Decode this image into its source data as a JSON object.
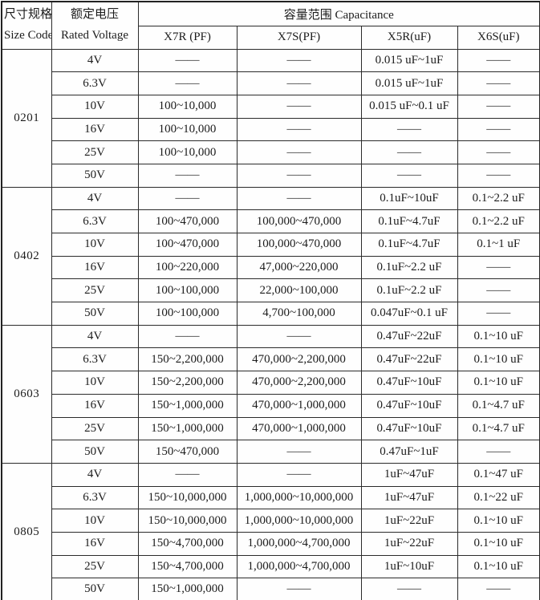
{
  "header": {
    "size_code_zh": "尺寸规格",
    "size_code_en": "Size Code",
    "rated_voltage_zh": "额定电压",
    "rated_voltage_en": "Rated Voltage",
    "capacitance_title": "容量范围 Capacitance",
    "sub_columns": [
      "X7R (PF)",
      "X7S(PF)",
      "X5R(uF)",
      "X6S(uF)"
    ]
  },
  "dash_symbol": "——",
  "groups": [
    {
      "size_code": "0201",
      "rows": [
        {
          "voltage": "4V",
          "x7r": "——",
          "x7s": "——",
          "x5r": "0.015 uF~1uF",
          "x6s": "——"
        },
        {
          "voltage": "6.3V",
          "x7r": "——",
          "x7s": "——",
          "x5r": "0.015 uF~1uF",
          "x6s": "——"
        },
        {
          "voltage": "10V",
          "x7r": "100~10,000",
          "x7s": "——",
          "x5r": "0.015 uF~0.1 uF",
          "x6s": "——"
        },
        {
          "voltage": "16V",
          "x7r": "100~10,000",
          "x7s": "——",
          "x5r": "——",
          "x6s": "——"
        },
        {
          "voltage": "25V",
          "x7r": "100~10,000",
          "x7s": "——",
          "x5r": "——",
          "x6s": "——"
        },
        {
          "voltage": "50V",
          "x7r": "——",
          "x7s": "——",
          "x5r": "——",
          "x6s": "——"
        }
      ]
    },
    {
      "size_code": "0402",
      "rows": [
        {
          "voltage": "4V",
          "x7r": "——",
          "x7s": "——",
          "x5r": "0.1uF~10uF",
          "x6s": "0.1~2.2 uF"
        },
        {
          "voltage": "6.3V",
          "x7r": "100~470,000",
          "x7s": "100,000~470,000",
          "x5r": "0.1uF~4.7uF",
          "x6s": "0.1~2.2 uF"
        },
        {
          "voltage": "10V",
          "x7r": "100~470,000",
          "x7s": "100,000~470,000",
          "x5r": "0.1uF~4.7uF",
          "x6s": "0.1~1 uF"
        },
        {
          "voltage": "16V",
          "x7r": "100~220,000",
          "x7s": "47,000~220,000",
          "x5r": "0.1uF~2.2 uF",
          "x6s": "——"
        },
        {
          "voltage": "25V",
          "x7r": "100~100,000",
          "x7s": "22,000~100,000",
          "x5r": "0.1uF~2.2 uF",
          "x6s": "——"
        },
        {
          "voltage": "50V",
          "x7r": "100~100,000",
          "x7s": "4,700~100,000",
          "x5r": "0.047uF~0.1 uF",
          "x6s": "——"
        }
      ]
    },
    {
      "size_code": "0603",
      "rows": [
        {
          "voltage": "4V",
          "x7r": "——",
          "x7s": "——",
          "x5r": "0.47uF~22uF",
          "x6s": "0.1~10 uF"
        },
        {
          "voltage": "6.3V",
          "x7r": "150~2,200,000",
          "x7s": "470,000~2,200,000",
          "x5r": "0.47uF~22uF",
          "x6s": "0.1~10 uF"
        },
        {
          "voltage": "10V",
          "x7r": "150~2,200,000",
          "x7s": "470,000~2,200,000",
          "x5r": "0.47uF~10uF",
          "x6s": "0.1~10 uF"
        },
        {
          "voltage": "16V",
          "x7r": "150~1,000,000",
          "x7s": "470,000~1,000,000",
          "x5r": "0.47uF~10uF",
          "x6s": "0.1~4.7 uF"
        },
        {
          "voltage": "25V",
          "x7r": "150~1,000,000",
          "x7s": "470,000~1,000,000",
          "x5r": "0.47uF~10uF",
          "x6s": "0.1~4.7 uF"
        },
        {
          "voltage": "50V",
          "x7r": "150~470,000",
          "x7s": "——",
          "x5r": "0.47uF~1uF",
          "x6s": "——"
        }
      ]
    },
    {
      "size_code": "0805",
      "rows": [
        {
          "voltage": "4V",
          "x7r": "——",
          "x7s": "——",
          "x5r": "1uF~47uF",
          "x6s": "0.1~47 uF"
        },
        {
          "voltage": "6.3V",
          "x7r": "150~10,000,000",
          "x7s": "1,000,000~10,000,000",
          "x5r": "1uF~47uF",
          "x6s": "0.1~22 uF"
        },
        {
          "voltage": "10V",
          "x7r": "150~10,000,000",
          "x7s": "1,000,000~10,000,000",
          "x5r": "1uF~22uF",
          "x6s": "0.1~10 uF"
        },
        {
          "voltage": "16V",
          "x7r": "150~4,700,000",
          "x7s": "1,000,000~4,700,000",
          "x5r": "1uF~22uF",
          "x6s": "0.1~10 uF"
        },
        {
          "voltage": "25V",
          "x7r": "150~4,700,000",
          "x7s": "1,000,000~4,700,000",
          "x5r": "1uF~10uF",
          "x6s": "0.1~10 uF"
        },
        {
          "voltage": "50V",
          "x7r": "150~1,000,000",
          "x7s": "——",
          "x5r": "——",
          "x6s": "——"
        }
      ]
    }
  ]
}
